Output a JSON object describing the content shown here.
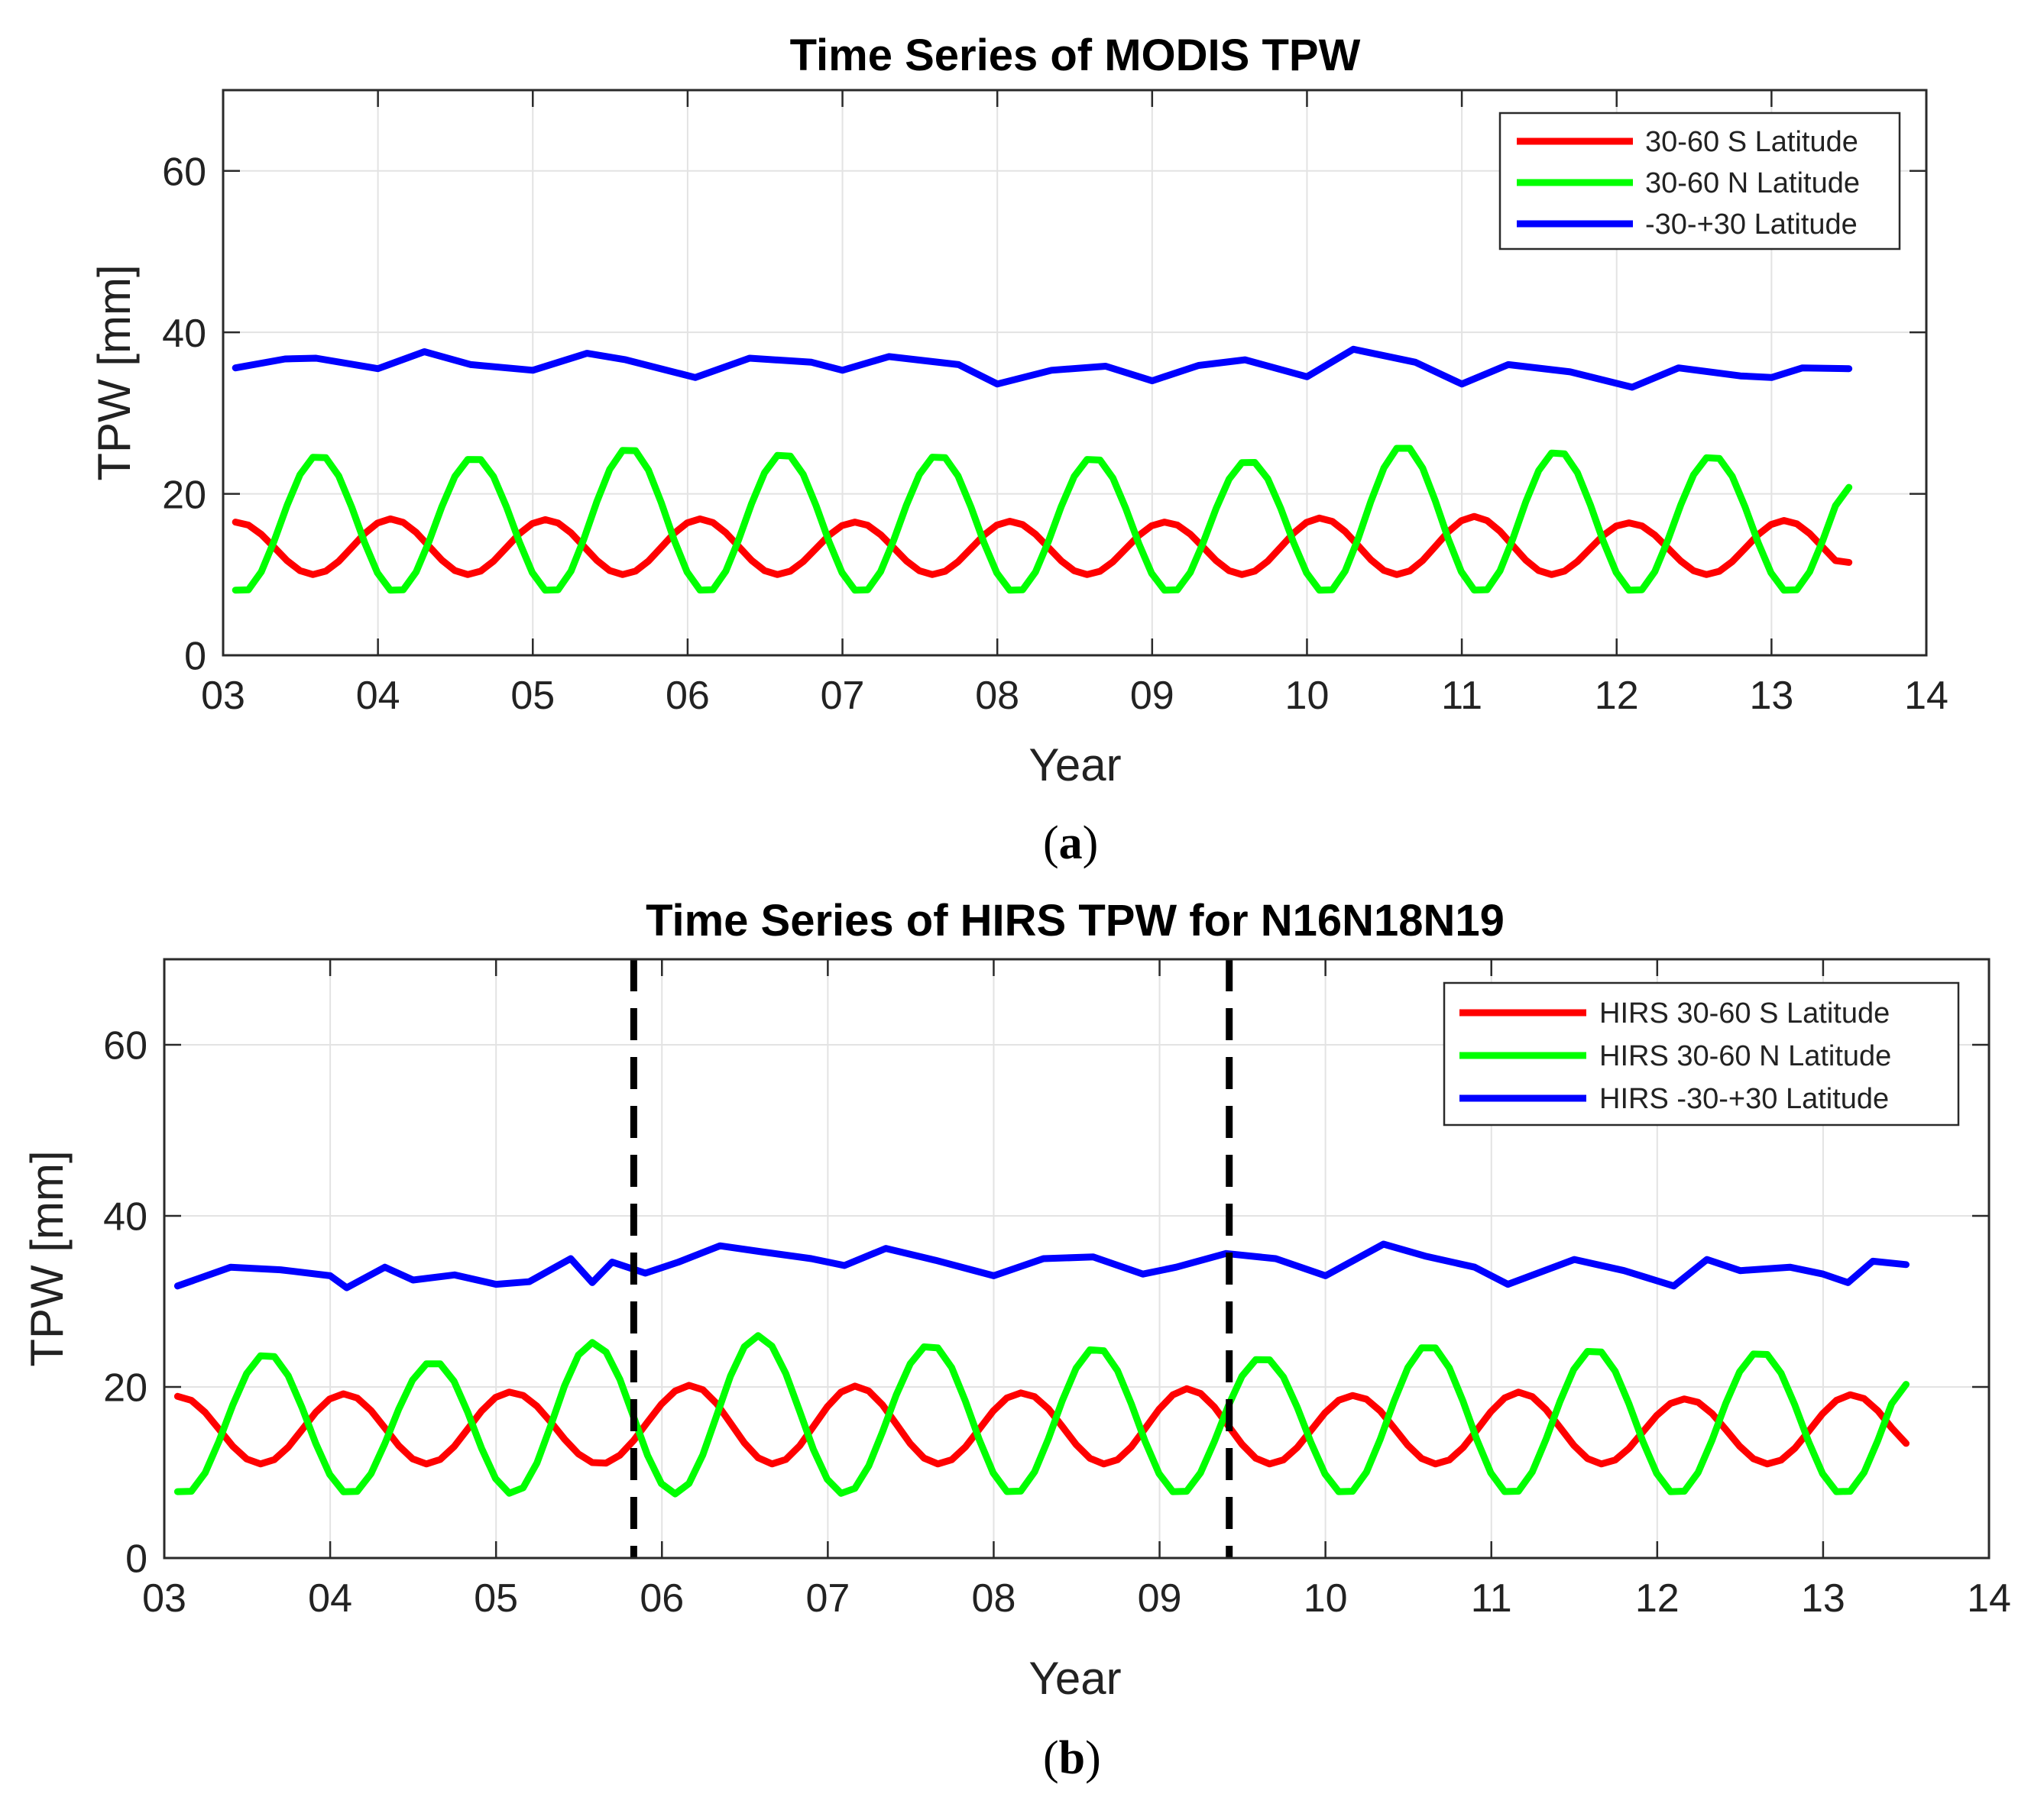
{
  "chart_data": [
    {
      "type": "line",
      "title": "Time Series of MODIS TPW",
      "xlabel": "Year",
      "ylabel": "TPW [mm]",
      "xlim": [
        3,
        14
      ],
      "ylim": [
        0,
        70
      ],
      "xticks": [
        3,
        4,
        5,
        6,
        7,
        8,
        9,
        10,
        11,
        12,
        13,
        14
      ],
      "xtick_labels": [
        "03",
        "04",
        "05",
        "06",
        "07",
        "08",
        "09",
        "10",
        "11",
        "12",
        "13",
        "14"
      ],
      "yticks": [
        0,
        20,
        40,
        60
      ],
      "ytick_labels": [
        "0",
        "20",
        "40",
        "60"
      ],
      "grid": true,
      "legend_position": "top-right",
      "panel_label": "a",
      "series": [
        {
          "name": "30-60 S Latitude",
          "color": "#ff0000",
          "x": [
            3.083,
            4.083,
            5.083,
            6.083,
            7.083,
            8.083,
            9.083,
            10.083,
            11.083,
            12.083,
            13.083
          ],
          "y": [
            16.5,
            16.9,
            16.8,
            16.9,
            16.5,
            16.6,
            16.5,
            17.0,
            17.2,
            16.4,
            16.7
          ],
          "x_end": 13.5,
          "y_end": 11.5,
          "min_value": 10.0,
          "pattern": "annual_peak_early_year"
        },
        {
          "name": "30-60 N Latitude",
          "color": "#00ff00",
          "x": [
            3.62,
            4.62,
            5.62,
            6.62,
            7.62,
            8.62,
            9.62,
            10.62,
            11.62,
            12.62
          ],
          "y": [
            24.8,
            24.5,
            25.7,
            25.0,
            24.8,
            24.5,
            24.1,
            26.0,
            25.3,
            24.7
          ],
          "x_end": 13.5,
          "y_end": 20.8,
          "min_value": 7.8,
          "pattern": "annual_peak_midyear"
        },
        {
          "name": "-30-+30 Latitude",
          "color": "#0000ff",
          "x": [
            3.08,
            3.4,
            3.6,
            4.0,
            4.3,
            4.6,
            5.0,
            5.35,
            5.6,
            6.05,
            6.4,
            6.8,
            7.0,
            7.3,
            7.75,
            8.0,
            8.35,
            8.7,
            9.0,
            9.3,
            9.6,
            10.0,
            10.3,
            10.7,
            11.0,
            11.3,
            11.7,
            12.1,
            12.4,
            12.8,
            13.0,
            13.2,
            13.5
          ],
          "y": [
            35.6,
            36.7,
            36.8,
            35.5,
            37.6,
            36.0,
            35.3,
            37.4,
            36.6,
            34.4,
            36.8,
            36.3,
            35.3,
            37.0,
            36.0,
            33.6,
            35.3,
            35.8,
            34.0,
            35.9,
            36.6,
            34.5,
            37.9,
            36.3,
            33.6,
            36.0,
            35.1,
            33.2,
            35.6,
            34.6,
            34.4,
            35.6,
            35.5
          ]
        }
      ]
    },
    {
      "type": "line",
      "title": "Time Series of HIRS TPW for  N16N18N19",
      "xlabel": "Year",
      "ylabel": "TPW [mm]",
      "xlim": [
        3,
        14
      ],
      "ylim": [
        0,
        70
      ],
      "xticks": [
        3,
        4,
        5,
        6,
        7,
        8,
        9,
        10,
        11,
        12,
        13,
        14
      ],
      "xtick_labels": [
        "03",
        "04",
        "05",
        "06",
        "07",
        "08",
        "09",
        "10",
        "11",
        "12",
        "13",
        "14"
      ],
      "yticks": [
        0,
        20,
        40,
        60
      ],
      "ytick_labels": [
        "0",
        "20",
        "40",
        "60"
      ],
      "grid": true,
      "legend_position": "top-right",
      "panel_label": "b",
      "vertical_dashed_lines": [
        5.83,
        9.42
      ],
      "series": [
        {
          "name": "HIRS 30-60 S Latitude",
          "color": "#ff0000",
          "x": [
            3.083,
            4.083,
            5.083,
            6.17,
            7.17,
            8.17,
            9.17,
            10.17,
            11.17,
            12.17,
            13.17
          ],
          "y": [
            18.9,
            19.2,
            19.4,
            20.2,
            20.1,
            19.3,
            19.8,
            19.0,
            19.4,
            18.6,
            19.1
          ],
          "x_end": 13.5,
          "y_end": 13.4,
          "min_value": 11.0,
          "pattern": "annual_peak_early_year"
        },
        {
          "name": "HIRS 30-60 N Latitude",
          "color": "#00ff00",
          "x": [
            3.62,
            4.62,
            5.58,
            6.58,
            7.62,
            8.62,
            9.62,
            10.62,
            11.62,
            12.62
          ],
          "y": [
            23.9,
            22.9,
            25.2,
            26.0,
            24.9,
            24.6,
            23.4,
            24.9,
            24.4,
            24.1
          ],
          "x_end": 13.5,
          "y_end": 20.3,
          "min_value": 7.5,
          "pattern": "annual_peak_midyear"
        },
        {
          "name": "HIRS -30-+30 Latitude",
          "color": "#0000ff",
          "x": [
            3.08,
            3.4,
            3.7,
            4.0,
            4.1,
            4.33,
            4.5,
            4.75,
            5.0,
            5.2,
            5.45,
            5.58,
            5.7,
            5.9,
            6.1,
            6.35,
            6.6,
            6.9,
            7.1,
            7.35,
            7.65,
            8.0,
            8.3,
            8.6,
            8.9,
            9.1,
            9.4,
            9.7,
            10.0,
            10.35,
            10.6,
            10.9,
            11.1,
            11.5,
            11.8,
            12.1,
            12.3,
            12.5,
            12.8,
            13.0,
            13.15,
            13.3,
            13.5
          ],
          "y": [
            31.8,
            34.0,
            33.7,
            33.0,
            31.6,
            34.0,
            32.5,
            33.1,
            32.0,
            32.3,
            35.0,
            32.2,
            34.6,
            33.3,
            34.6,
            36.5,
            35.8,
            35.0,
            34.2,
            36.2,
            34.8,
            33.0,
            35.0,
            35.2,
            33.2,
            34.0,
            35.6,
            35.0,
            33.0,
            36.7,
            35.3,
            34.0,
            32.0,
            34.9,
            33.6,
            31.8,
            34.9,
            33.6,
            34.0,
            33.2,
            32.2,
            34.7,
            34.3
          ]
        }
      ]
    }
  ]
}
